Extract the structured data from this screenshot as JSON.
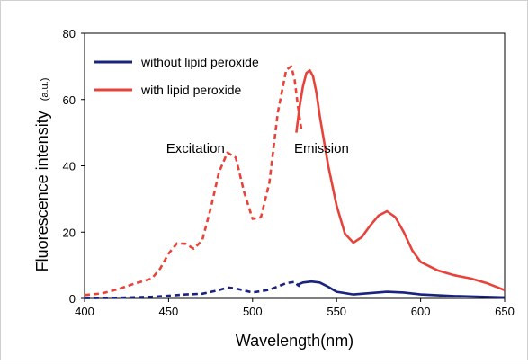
{
  "chart_data": {
    "type": "line",
    "xlabel": "Wavelength(nm)",
    "ylabel": "Fluorescence intensity",
    "ylabel_unit": "(a.u.)",
    "xlim": [
      400,
      650
    ],
    "ylim": [
      0,
      80
    ],
    "x_ticks": [
      400,
      450,
      500,
      550,
      600,
      650
    ],
    "y_ticks": [
      0,
      20,
      40,
      60,
      80
    ],
    "grid": false,
    "legend_position": "top-left",
    "annotations": [
      {
        "text": "Excitation",
        "x": 466,
        "y": 44
      },
      {
        "text": "Emission",
        "x": 541,
        "y": 44
      }
    ],
    "series": [
      {
        "name": "without lipid peroxide",
        "color": "#1a237e",
        "legend_index": 0,
        "style": "dashed",
        "x": [
          400,
          420,
          440,
          450,
          460,
          470,
          480,
          485,
          490,
          500,
          510,
          520,
          525,
          528
        ],
        "y": [
          0.1,
          0.2,
          0.5,
          0.8,
          1.2,
          1.4,
          2.5,
          3.3,
          3.0,
          1.8,
          2.6,
          4.6,
          5.0,
          3.6
        ]
      },
      {
        "name": "without lipid peroxide",
        "color": "#1a237e",
        "legend_index": -1,
        "style": "solid",
        "x": [
          526,
          530,
          535,
          540,
          545,
          550,
          560,
          570,
          580,
          590,
          600,
          620,
          650
        ],
        "y": [
          4.0,
          4.8,
          5.1,
          4.8,
          3.5,
          2.0,
          1.2,
          1.6,
          2.0,
          1.8,
          1.2,
          0.7,
          0.3
        ]
      },
      {
        "name": "with lipid peroxide",
        "color": "#e8433a",
        "legend_index": 1,
        "style": "dashed",
        "x": [
          400,
          410,
          420,
          430,
          440,
          445,
          450,
          455,
          460,
          465,
          470,
          475,
          480,
          485,
          490,
          495,
          500,
          505,
          510,
          515,
          520,
          523,
          525,
          527,
          529
        ],
        "y": [
          1.0,
          1.5,
          2.8,
          4.5,
          6.0,
          9.0,
          13.5,
          16.6,
          16.5,
          15.0,
          17.5,
          27.0,
          38.0,
          44.0,
          42.5,
          32.0,
          24.0,
          24.5,
          35.0,
          56.0,
          69.0,
          70.0,
          66.0,
          58.0,
          51.0
        ]
      },
      {
        "name": "with lipid peroxide",
        "color": "#e8433a",
        "legend_index": -1,
        "style": "solid",
        "x": [
          526,
          528,
          530,
          532,
          534,
          536,
          538,
          540,
          545,
          550,
          555,
          560,
          565,
          570,
          575,
          580,
          585,
          590,
          595,
          600,
          610,
          620,
          630,
          640,
          650
        ],
        "y": [
          50.0,
          58.0,
          64.0,
          68.0,
          68.8,
          67.0,
          62.0,
          55.0,
          40.0,
          28.0,
          19.5,
          16.8,
          18.5,
          22.0,
          25.0,
          26.3,
          24.5,
          20.0,
          14.5,
          11.0,
          8.5,
          7.0,
          6.0,
          4.5,
          2.5
        ]
      }
    ]
  }
}
